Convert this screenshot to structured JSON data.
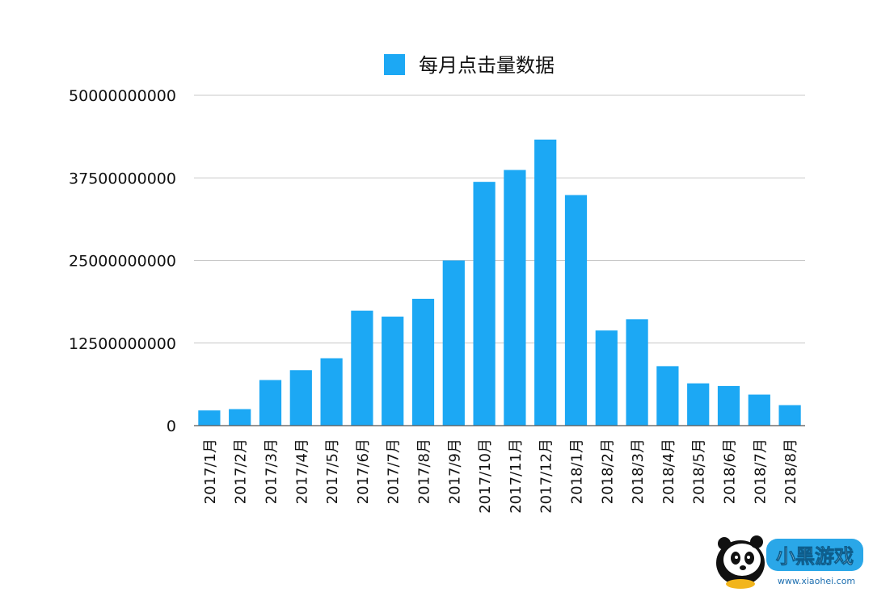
{
  "chart_data": {
    "type": "bar",
    "legend": {
      "label": "每月点击量数据",
      "position": "top-center"
    },
    "color": "#1ca8f4",
    "categories": [
      "2017/1月",
      "2017/2月",
      "2017/3月",
      "2017/4月",
      "2017/5月",
      "2017/6月",
      "2017/7月",
      "2017/8月",
      "2017/9月",
      "2017/10月",
      "2017/11月",
      "2017/12月",
      "2018/1月",
      "2018/2月",
      "2018/3月",
      "2018/4月",
      "2018/5月",
      "2018/6月",
      "2018/7月",
      "2018/8月"
    ],
    "series": [
      {
        "name": "每月点击量数据",
        "values": [
          2300000000,
          2500000000,
          6900000000,
          8400000000,
          10200000000,
          17400000000,
          16500000000,
          19200000000,
          25000000000,
          36900000000,
          38700000000,
          43300000000,
          34900000000,
          14400000000,
          16100000000,
          9000000000,
          6400000000,
          6000000000,
          4700000000,
          3100000000
        ]
      }
    ],
    "yticks": [
      "0",
      "12500000000",
      "25000000000",
      "37500000000",
      "50000000000"
    ],
    "ylim": [
      0,
      50000000000
    ],
    "grid": true
  },
  "watermark": {
    "text": "小黑游戏",
    "url_text": "www.xiaohei.com",
    "accent": "#2aa7e8"
  }
}
